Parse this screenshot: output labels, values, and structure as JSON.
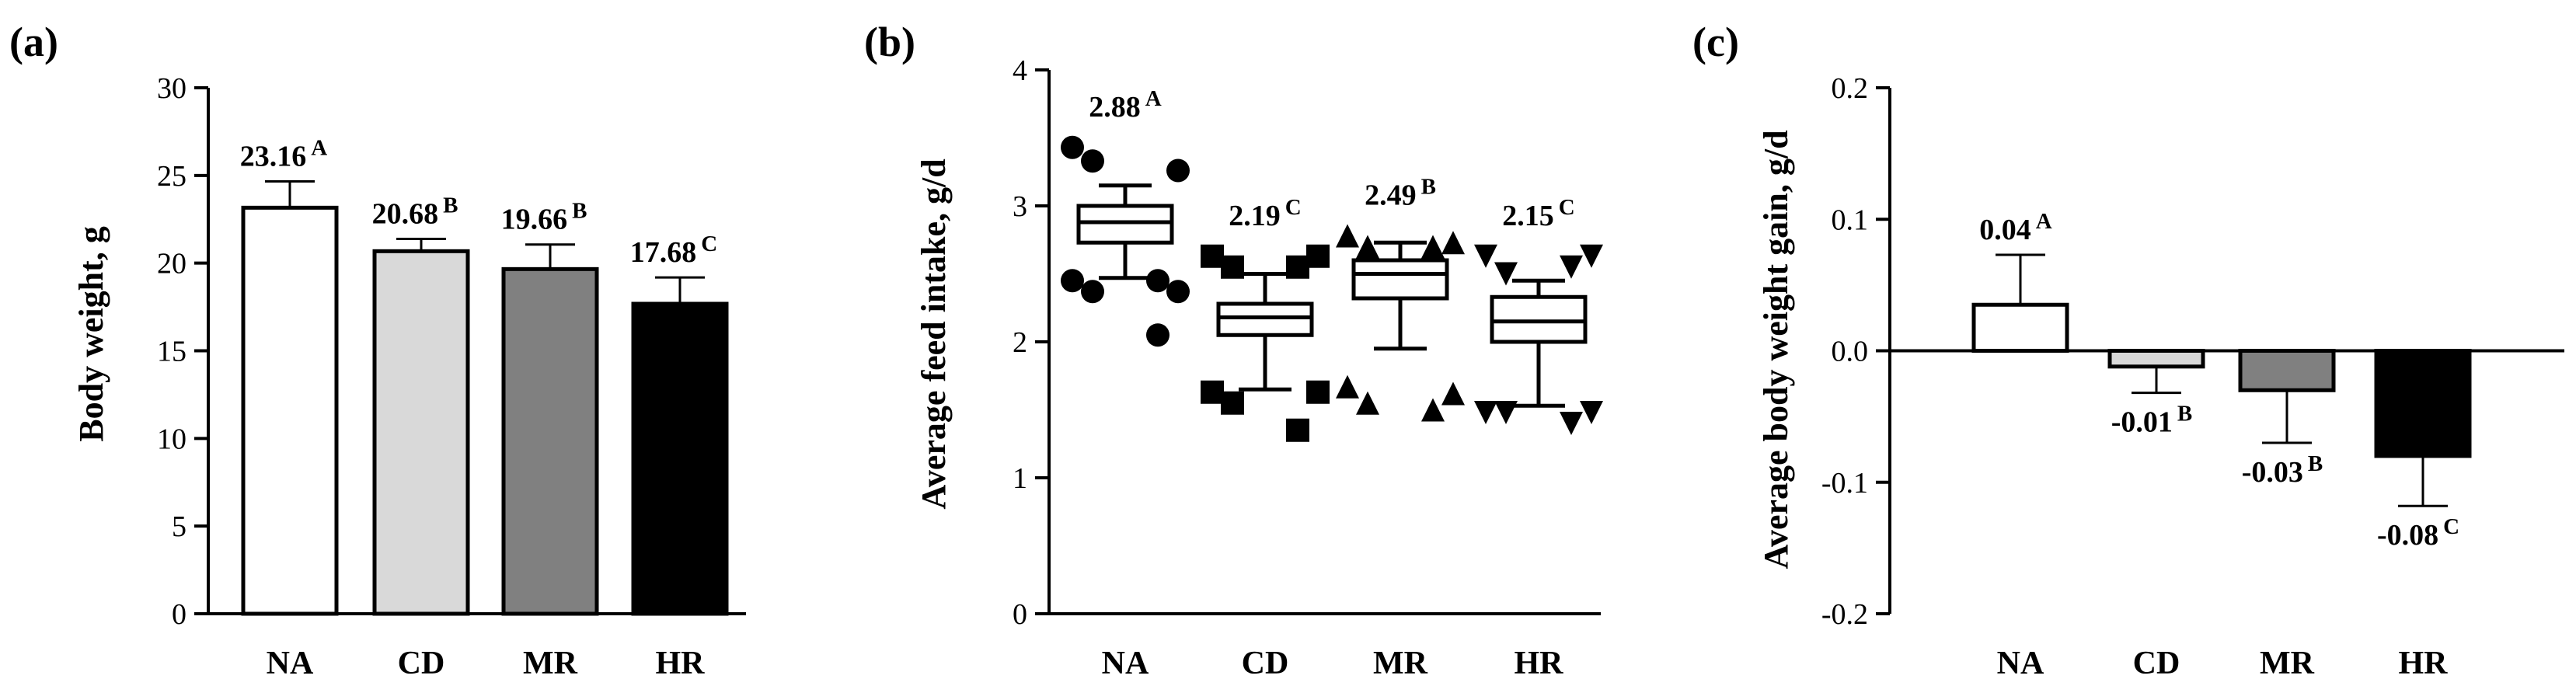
{
  "colors": {
    "NA": "#ffffff",
    "CD": "#d9d9d9",
    "MR": "#808080",
    "HR": "#000000",
    "axis": "#000000",
    "stroke": "#000000"
  },
  "chart_data": [
    {
      "panel": "(a)",
      "type": "bar",
      "ylabel": "Body weight, g",
      "xlabel": "",
      "ylim": [
        0,
        30
      ],
      "yticks": [
        0,
        5,
        10,
        15,
        20,
        25,
        30
      ],
      "categories": [
        "NA",
        "CD",
        "MR",
        "HR"
      ],
      "values": [
        23.16,
        20.68,
        19.66,
        17.68
      ],
      "errors": [
        1.5,
        0.7,
        1.4,
        1.5
      ],
      "labels": [
        "23.16",
        "20.68",
        "19.66",
        "17.68"
      ],
      "letters": [
        "A",
        "B",
        "B",
        "C"
      ]
    },
    {
      "panel": "(b)",
      "type": "box",
      "ylabel": "Average feed intake, g/d",
      "xlabel": "",
      "ylim": [
        0,
        4
      ],
      "yticks": [
        0,
        1,
        2,
        3,
        4
      ],
      "categories": [
        "NA",
        "CD",
        "MR",
        "HR"
      ],
      "marker_shapes": [
        "circle",
        "square",
        "triangle-up",
        "triangle-down"
      ],
      "boxes": [
        {
          "whisker_low": 2.47,
          "q1": 2.73,
          "median": 2.88,
          "q3": 3.0,
          "whisker_high": 3.15
        },
        {
          "whisker_low": 1.65,
          "q1": 2.05,
          "median": 2.18,
          "q3": 2.28,
          "whisker_high": 2.5
        },
        {
          "whisker_low": 1.95,
          "q1": 2.32,
          "median": 2.5,
          "q3": 2.6,
          "whisker_high": 2.73
        },
        {
          "whisker_low": 1.53,
          "q1": 2.0,
          "median": 2.15,
          "q3": 2.33,
          "whisker_high": 2.45
        }
      ],
      "outliers": [
        [
          3.43,
          3.26,
          3.33,
          2.45,
          2.45,
          2.37,
          2.37,
          2.05
        ],
        [
          2.63,
          2.63,
          2.55,
          2.55,
          1.63,
          1.63,
          1.55,
          1.35
        ],
        [
          2.78,
          2.73,
          2.7,
          2.7,
          1.67,
          1.62,
          1.55,
          1.5
        ],
        [
          2.63,
          2.63,
          2.5,
          2.55,
          1.48,
          1.48,
          1.48,
          1.4
        ]
      ],
      "labels": [
        "2.88",
        "2.19",
        "2.49",
        "2.15"
      ],
      "letters": [
        "A",
        "C",
        "B",
        "C"
      ]
    },
    {
      "panel": "(c)",
      "type": "bar",
      "ylabel": "Average body weight gain, g/d",
      "xlabel": "",
      "ylim": [
        -0.2,
        0.2
      ],
      "yticks": [
        -0.2,
        -0.1,
        0.0,
        0.1,
        0.2
      ],
      "ytick_labels": [
        "-0.2",
        "-0.1",
        "0.0",
        "0.1",
        "0.2"
      ],
      "categories": [
        "NA",
        "CD",
        "MR",
        "HR"
      ],
      "values": [
        0.035,
        -0.012,
        -0.03,
        -0.08
      ],
      "errors": [
        0.038,
        0.02,
        0.04,
        0.038
      ],
      "labels": [
        "0.04",
        "-0.01",
        "-0.03",
        "-0.08"
      ],
      "letters": [
        "A",
        "B",
        "B",
        "C"
      ]
    }
  ]
}
